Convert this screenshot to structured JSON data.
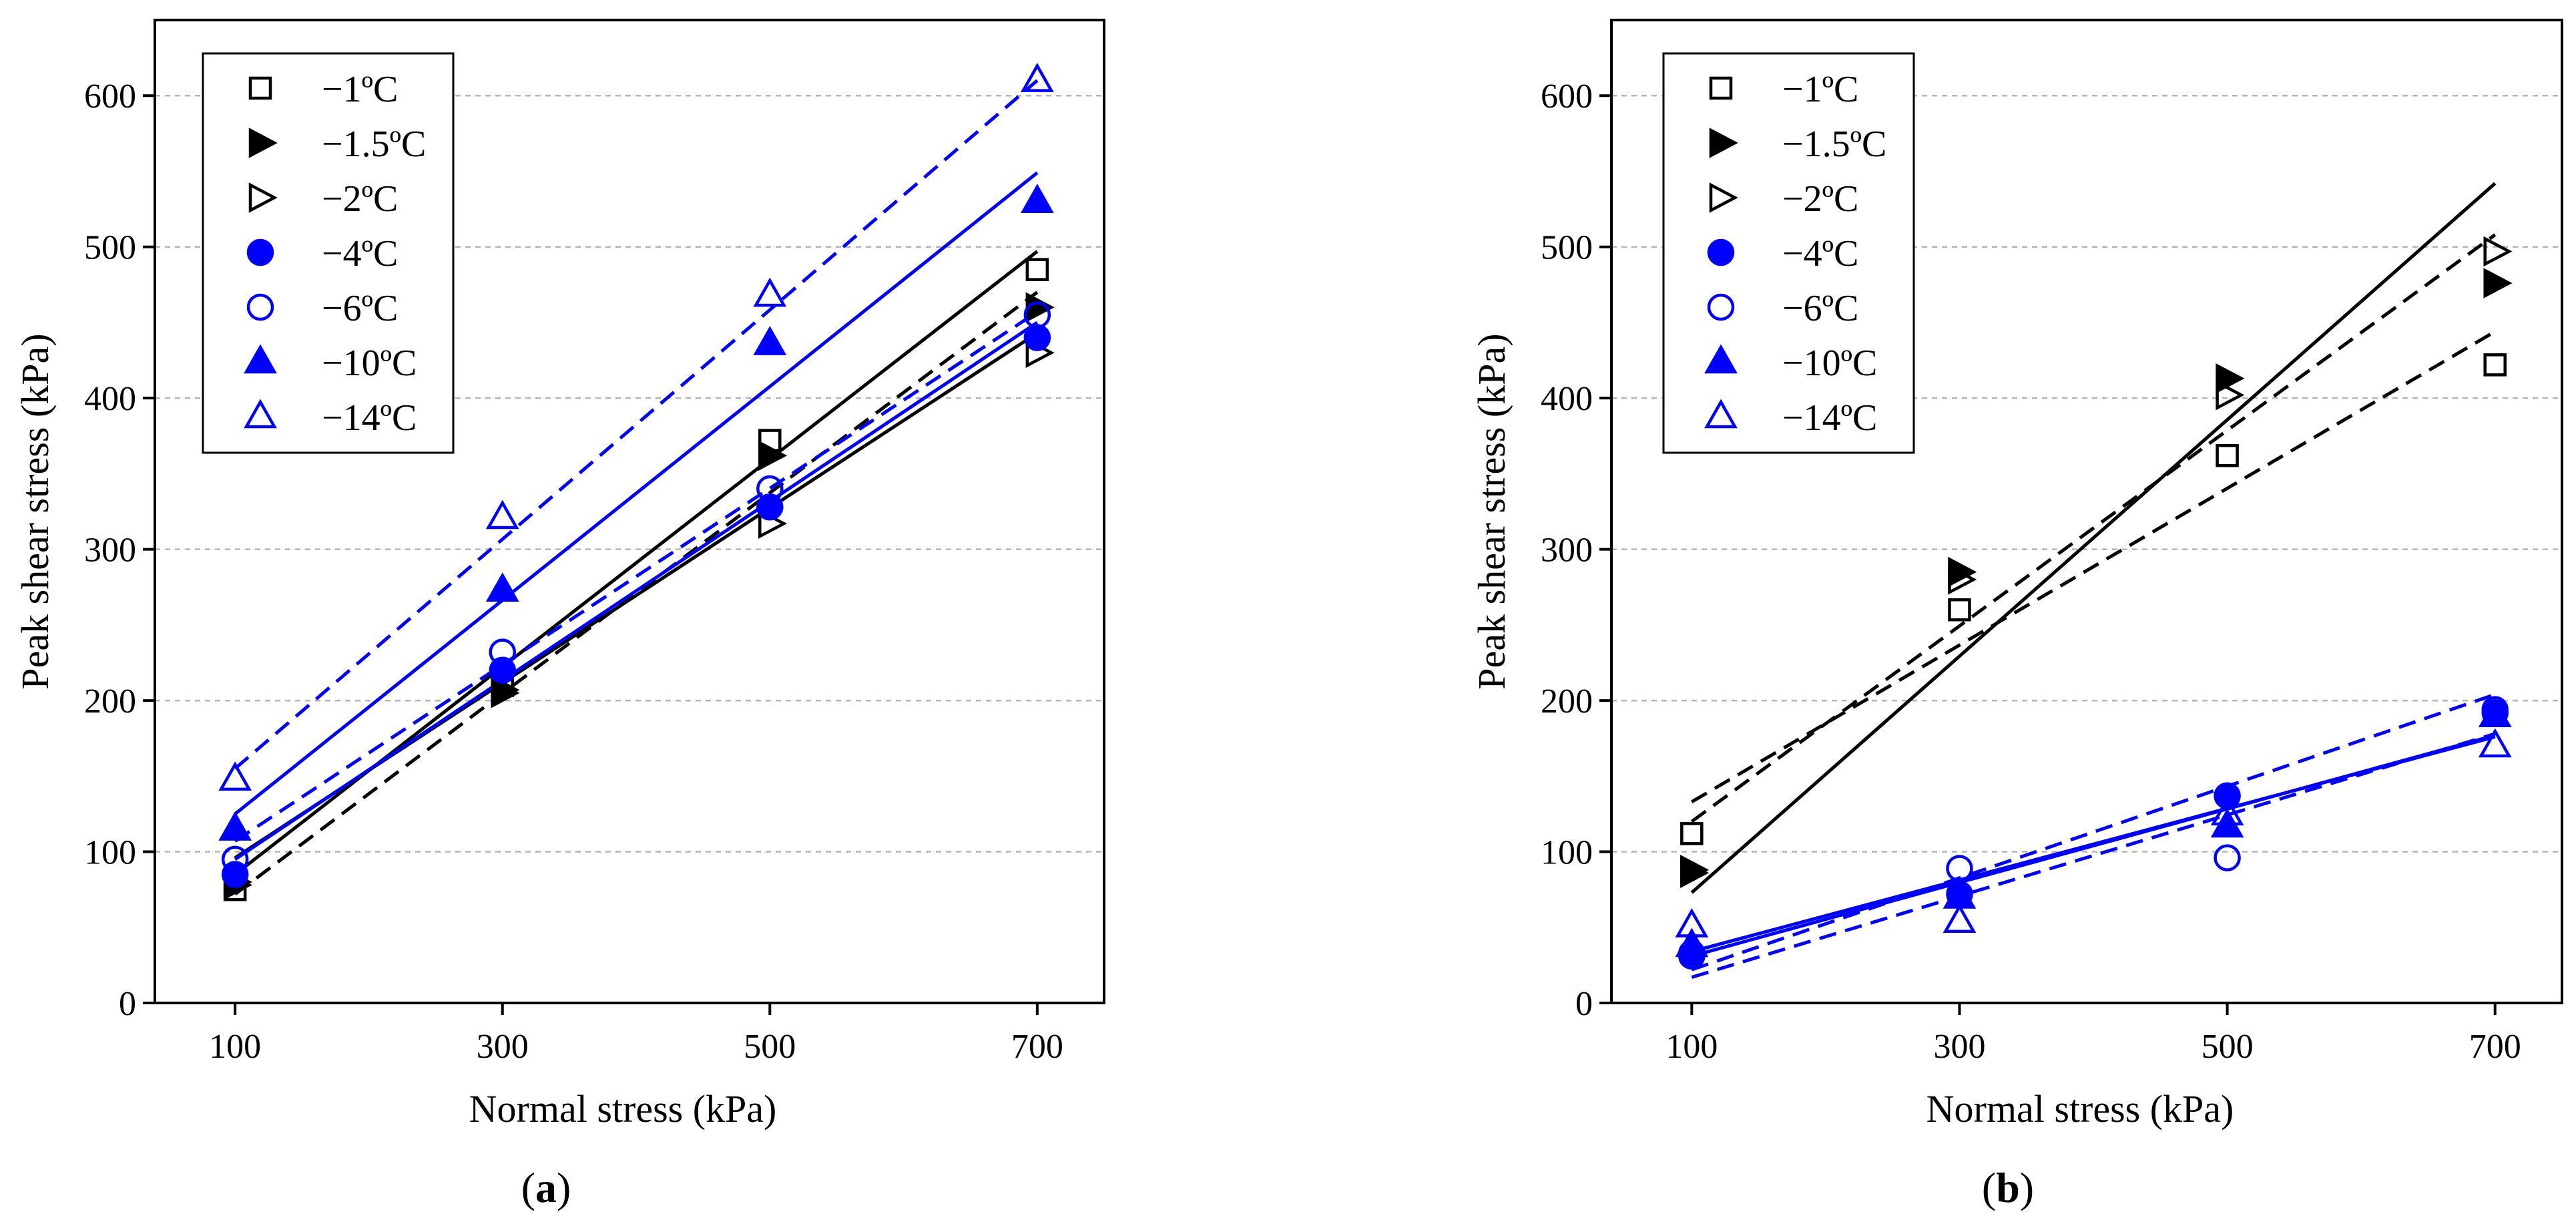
{
  "figure": {
    "panel_a": {
      "paren_open": "(",
      "letter": "a",
      "paren_close": ")"
    },
    "panel_b": {
      "paren_open": "(",
      "letter": "b",
      "paren_close": ")"
    }
  },
  "colors": {
    "black": "#000000",
    "blue": "#0000ff",
    "grid": "#b0b0b0"
  },
  "chart_data": [
    {
      "id": "a",
      "type": "scatter",
      "title": "(a)",
      "xlabel": "Normal stress (kPa)",
      "ylabel": "Peak shear stress (kPa)",
      "xlim": [
        40,
        750
      ],
      "ylim": [
        0,
        650
      ],
      "xticks": [
        100,
        300,
        500,
        700
      ],
      "yticks": [
        0,
        100,
        200,
        300,
        400,
        500,
        600
      ],
      "grid": "horizontal dashed",
      "legend_position": "top-left",
      "x": [
        100,
        300,
        500,
        700
      ],
      "series": [
        {
          "name": "−1ºC",
          "color": "#000000",
          "marker": "square-open",
          "values": [
            75,
            210,
            372,
            485
          ],
          "fit": {
            "style": "solid",
            "points": [
              [
                100,
                85
              ],
              [
                700,
                497
              ]
            ]
          }
        },
        {
          "name": "−1.5ºC",
          "color": "#000000",
          "marker": "tri-right-filled",
          "values": [
            78,
            205,
            362,
            460
          ],
          "fit": {
            "style": "dashed",
            "points": [
              [
                100,
                72
              ],
              [
                700,
                470
              ]
            ]
          }
        },
        {
          "name": "−2ºC",
          "color": "#000000",
          "marker": "tri-right-open",
          "values": [
            80,
            207,
            317,
            430
          ],
          "fit": {
            "style": "solid",
            "points": [
              [
                100,
                96
              ],
              [
                700,
                443
              ]
            ]
          }
        },
        {
          "name": "−4ºC",
          "color": "#0000ff",
          "marker": "circle-filled",
          "values": [
            85,
            220,
            328,
            440
          ],
          "fit": {
            "style": "solid",
            "points": [
              [
                100,
                95
              ],
              [
                700,
                450
              ]
            ]
          }
        },
        {
          "name": "−6ºC",
          "color": "#0000ff",
          "marker": "circle-open",
          "values": [
            95,
            232,
            340,
            455
          ],
          "fit": {
            "style": "dashed",
            "points": [
              [
                100,
                107
              ],
              [
                700,
                457
              ]
            ]
          }
        },
        {
          "name": "−10ºC",
          "color": "#0000ff",
          "marker": "tri-up-filled",
          "values": [
            115,
            273,
            436,
            530
          ],
          "fit": {
            "style": "solid",
            "points": [
              [
                100,
                125
              ],
              [
                700,
                549
              ]
            ]
          }
        },
        {
          "name": "−14ºC",
          "color": "#0000ff",
          "marker": "tri-up-open",
          "values": [
            148,
            321,
            468,
            610
          ],
          "fit": {
            "style": "dashed",
            "points": [
              [
                100,
                155
              ],
              [
                700,
                610
              ]
            ]
          }
        }
      ]
    },
    {
      "id": "b",
      "type": "scatter",
      "title": "(b)",
      "xlabel": "Normal stress (kPa)",
      "ylabel": "Peak shear stress (kPa)",
      "xlim": [
        40,
        750
      ],
      "ylim": [
        0,
        650
      ],
      "xticks": [
        100,
        300,
        500,
        700
      ],
      "yticks": [
        0,
        100,
        200,
        300,
        400,
        500,
        600
      ],
      "grid": "horizontal dashed",
      "legend_position": "top-left",
      "x": [
        100,
        300,
        500,
        700
      ],
      "series": [
        {
          "name": "−1ºC",
          "color": "#000000",
          "marker": "square-open",
          "values": [
            112,
            260,
            362,
            422
          ],
          "fit": {
            "style": "dashed",
            "points": [
              [
                100,
                133
              ],
              [
                700,
                444
              ]
            ]
          }
        },
        {
          "name": "−1.5ºC",
          "color": "#000000",
          "marker": "tri-right-filled",
          "values": [
            88,
            285,
            413,
            476
          ],
          "fit": {
            "style": "solid",
            "points": [
              [
                100,
                73
              ],
              [
                700,
                542
              ]
            ]
          }
        },
        {
          "name": "−2ºC",
          "color": "#000000",
          "marker": "tri-right-open",
          "values": [
            86,
            280,
            402,
            497
          ],
          "fit": {
            "style": "dashed",
            "points": [
              [
                100,
                120
              ],
              [
                700,
                508
              ]
            ]
          }
        },
        {
          "name": "−4ºC",
          "color": "#0000ff",
          "marker": "circle-filled",
          "values": [
            33,
            72,
            137,
            192
          ],
          "fit": {
            "style": "solid",
            "points": [
              [
                100,
                31
              ],
              [
                700,
                177
              ]
            ]
          }
        },
        {
          "name": "−6ºC",
          "color": "#0000ff",
          "marker": "circle-open",
          "values": [
            31,
            89,
            96,
            194
          ],
          "fit": {
            "style": "dashed",
            "points": [
              [
                100,
                22
              ],
              [
                700,
                204
              ]
            ]
          }
        },
        {
          "name": "−10ºC",
          "color": "#0000ff",
          "marker": "tri-up-filled",
          "values": [
            38,
            70,
            117,
            190
          ],
          "fit": {
            "style": "solid",
            "points": [
              [
                100,
                34
              ],
              [
                700,
                176
              ]
            ]
          }
        },
        {
          "name": "−14ºC",
          "color": "#0000ff",
          "marker": "tri-up-open",
          "values": [
            51,
            54,
            125,
            170
          ],
          "fit": {
            "style": "dashed",
            "points": [
              [
                100,
                17
              ],
              [
                700,
                178
              ]
            ]
          }
        }
      ]
    }
  ]
}
